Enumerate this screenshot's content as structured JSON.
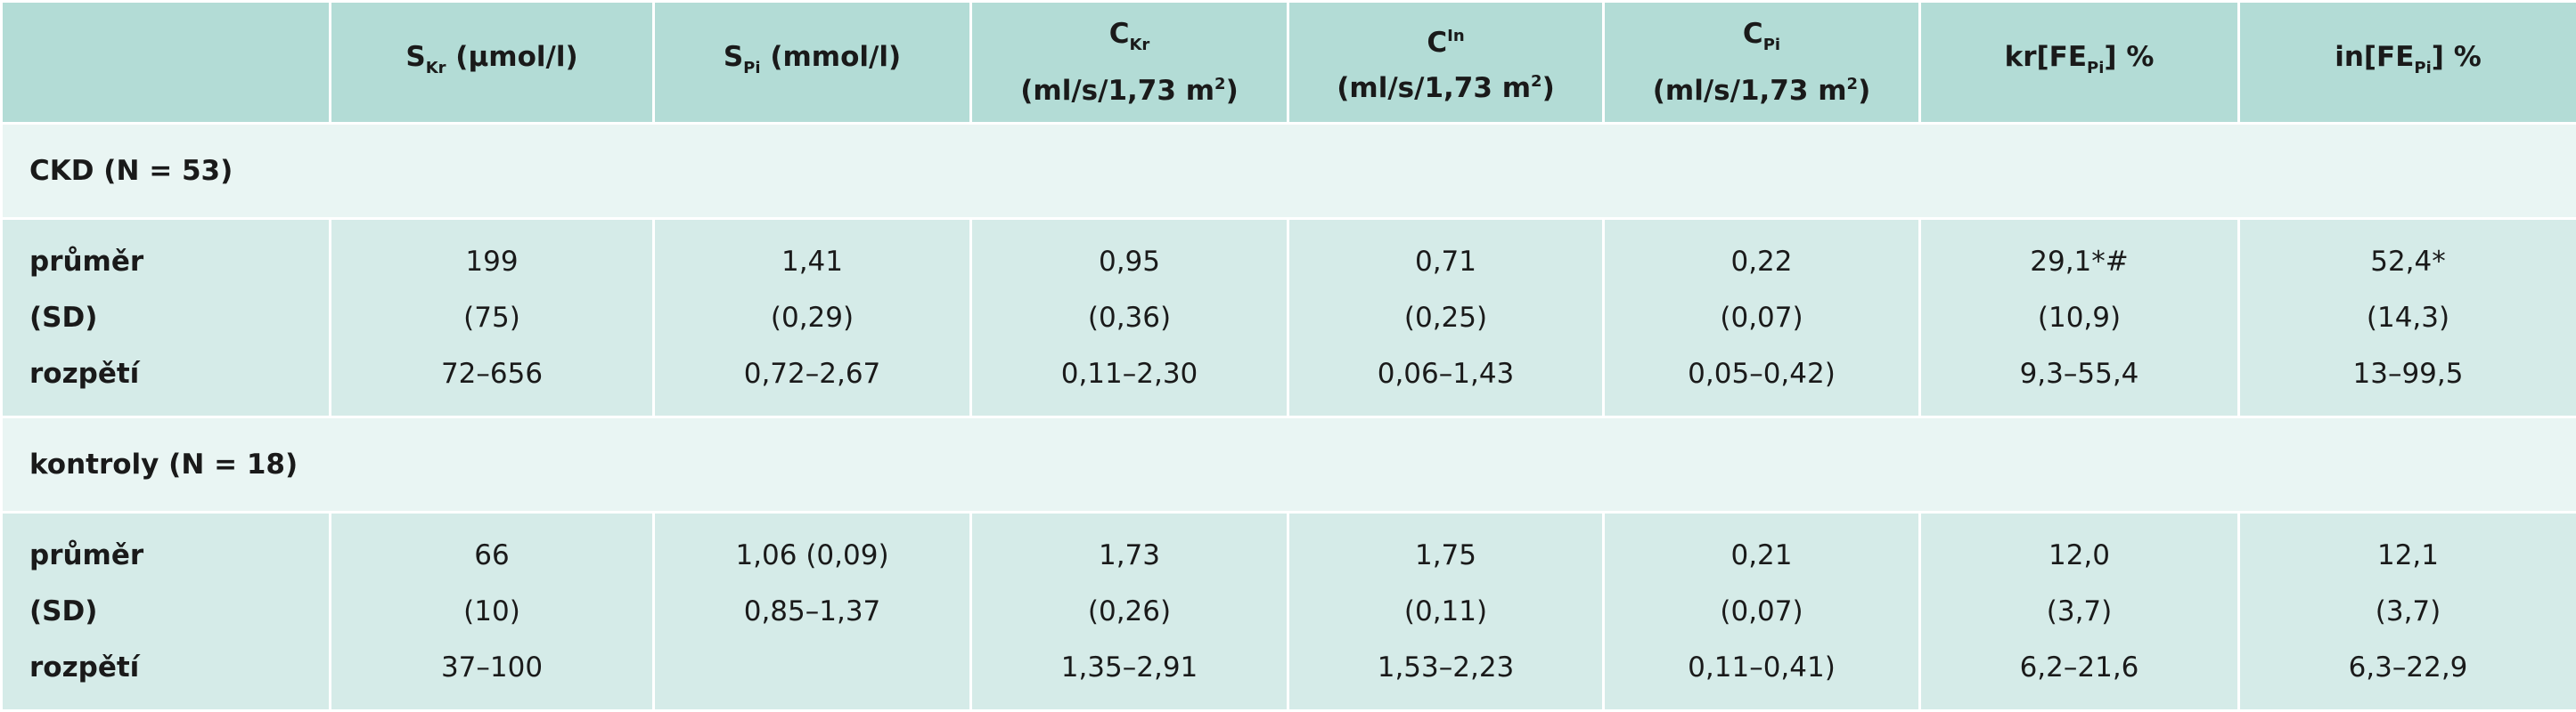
{
  "header": {
    "columns": [
      {
        "lines": [
          [
            {
              "text": "S"
            },
            {
              "text": "Kr",
              "pos": "sub"
            },
            {
              "text": " (µmol/l)"
            }
          ]
        ]
      },
      {
        "lines": [
          [
            {
              "text": "S"
            },
            {
              "text": "Pi",
              "pos": "sub"
            },
            {
              "text": " (mmol/l)"
            }
          ]
        ]
      },
      {
        "lines": [
          [
            {
              "text": "C"
            },
            {
              "text": "Kr",
              "pos": "sub"
            }
          ],
          [
            {
              "text": "(ml/s/1,73 m"
            },
            {
              "text": "2",
              "pos": "sup"
            },
            {
              "text": ")"
            }
          ]
        ]
      },
      {
        "lines": [
          [
            {
              "text": "C"
            },
            {
              "text": "In",
              "pos": "sup"
            }
          ],
          [
            {
              "text": "(ml/s/1,73 m"
            },
            {
              "text": "2",
              "pos": "sup"
            },
            {
              "text": ")"
            }
          ]
        ]
      },
      {
        "lines": [
          [
            {
              "text": "C"
            },
            {
              "text": "Pi",
              "pos": "sub"
            }
          ],
          [
            {
              "text": "(ml/s/1,73 m"
            },
            {
              "text": "2",
              "pos": "sup"
            },
            {
              "text": ")"
            }
          ]
        ]
      },
      {
        "lines": [
          [
            {
              "text": "kr[FE"
            },
            {
              "text": "Pi",
              "pos": "sub"
            },
            {
              "text": "] %"
            }
          ]
        ]
      },
      {
        "lines": [
          [
            {
              "text": "in[FE"
            },
            {
              "text": "Pi",
              "pos": "sub"
            },
            {
              "text": "] %"
            }
          ]
        ]
      }
    ]
  },
  "sections": [
    {
      "label": "CKD (N = 53)",
      "rows": [
        {
          "label": "průměr",
          "values": [
            "199",
            "1,41",
            "0,95",
            "0,71",
            "0,22",
            "29,1*#",
            "52,4*"
          ]
        },
        {
          "label": "(SD)",
          "values": [
            "(75)",
            "(0,29)",
            "(0,36)",
            "(0,25)",
            "(0,07)",
            "(10,9)",
            "(14,3)"
          ]
        },
        {
          "label": "rozpětí",
          "values": [
            "72–656",
            "0,72–2,67",
            "0,11–2,30",
            "0,06–1,43",
            "0,05–0,42)",
            "9,3–55,4",
            "13–99,5"
          ]
        }
      ]
    },
    {
      "label": "kontroly (N = 18)",
      "rows": [
        {
          "label": "průměr",
          "values": [
            "66",
            "1,06 (0,09)",
            "1,73",
            "1,75",
            "0,21",
            "12,0",
            "12,1"
          ]
        },
        {
          "label": "(SD)",
          "values": [
            "(10)",
            "0,85–1,37",
            "(0,26)",
            "(0,11)",
            "(0,07)",
            "(3,7)",
            "(3,7)"
          ]
        },
        {
          "label": "rozpětí",
          "values": [
            "37–100",
            null,
            "1,35–2,91",
            "1,53–2,23",
            "0,11–0,41)",
            "6,2–21,6",
            "6,3–22,9"
          ]
        }
      ]
    }
  ]
}
